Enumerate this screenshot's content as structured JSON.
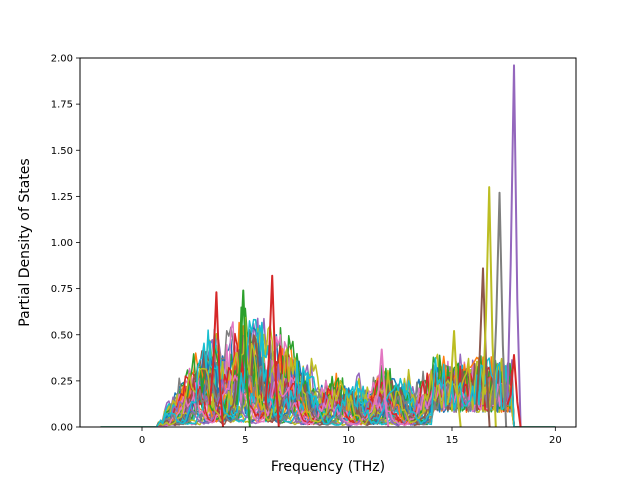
{
  "chart_data": {
    "type": "line",
    "title": "",
    "xlabel": "Frequency (THz)",
    "ylabel": "Partial Density of States",
    "xlim": [
      -3.0,
      21.0
    ],
    "ylim": [
      0.0,
      2.0
    ],
    "x_ticks": [
      0,
      5,
      10,
      15,
      20
    ],
    "y_ticks": [
      0.0,
      0.25,
      0.5,
      0.75,
      1.0,
      1.25,
      1.5,
      1.75,
      2.0
    ],
    "x_tick_labels": [
      "0",
      "5",
      "10",
      "15",
      "20"
    ],
    "y_tick_labels": [
      "0.00",
      "0.25",
      "0.50",
      "0.75",
      "1.00",
      "1.25",
      "1.50",
      "1.75",
      "2.00"
    ],
    "grid": false,
    "legend": "none",
    "x_domain": [
      -2.0,
      20.0
    ],
    "estimated_series_count": 40,
    "colors": [
      "#1f77b4",
      "#ff7f0e",
      "#2ca02c",
      "#d62728",
      "#9467bd",
      "#8c564b",
      "#e377c2",
      "#7f7f7f",
      "#bcbd22",
      "#17becf"
    ],
    "envelope": [
      {
        "x": -2.0,
        "y": 0.0
      },
      {
        "x": 0.0,
        "y": 0.0
      },
      {
        "x": 1.0,
        "y": 0.05
      },
      {
        "x": 1.5,
        "y": 0.3
      },
      {
        "x": 2.5,
        "y": 0.45
      },
      {
        "x": 3.5,
        "y": 0.72
      },
      {
        "x": 5.0,
        "y": 0.72
      },
      {
        "x": 6.3,
        "y": 0.82
      },
      {
        "x": 7.0,
        "y": 0.6
      },
      {
        "x": 8.0,
        "y": 0.42
      },
      {
        "x": 9.0,
        "y": 0.38
      },
      {
        "x": 10.0,
        "y": 0.3
      },
      {
        "x": 11.5,
        "y": 0.42
      },
      {
        "x": 12.5,
        "y": 0.33
      },
      {
        "x": 14.5,
        "y": 0.45
      },
      {
        "x": 15.0,
        "y": 0.52
      },
      {
        "x": 16.0,
        "y": 0.55
      },
      {
        "x": 16.5,
        "y": 0.86
      },
      {
        "x": 16.8,
        "y": 1.3
      },
      {
        "x": 17.3,
        "y": 1.27
      },
      {
        "x": 18.0,
        "y": 1.96
      },
      {
        "x": 18.2,
        "y": 0.0
      },
      {
        "x": 20.0,
        "y": 0.0
      }
    ],
    "peaks": [
      {
        "x": 3.6,
        "y": 0.73,
        "color": "#d62728"
      },
      {
        "x": 4.9,
        "y": 0.74,
        "color": "#2ca02c"
      },
      {
        "x": 6.3,
        "y": 0.82,
        "color": "#d62728"
      },
      {
        "x": 11.6,
        "y": 0.42,
        "color": "#e377c2"
      },
      {
        "x": 15.1,
        "y": 0.52,
        "color": "#bcbd22"
      },
      {
        "x": 16.5,
        "y": 0.86,
        "color": "#8c564b"
      },
      {
        "x": 16.8,
        "y": 1.3,
        "color": "#bcbd22"
      },
      {
        "x": 17.3,
        "y": 1.27,
        "color": "#7f7f7f"
      },
      {
        "x": 18.0,
        "y": 1.96,
        "color": "#9467bd"
      },
      {
        "x": 18.0,
        "y": 0.39,
        "color": "#d62728"
      }
    ]
  }
}
